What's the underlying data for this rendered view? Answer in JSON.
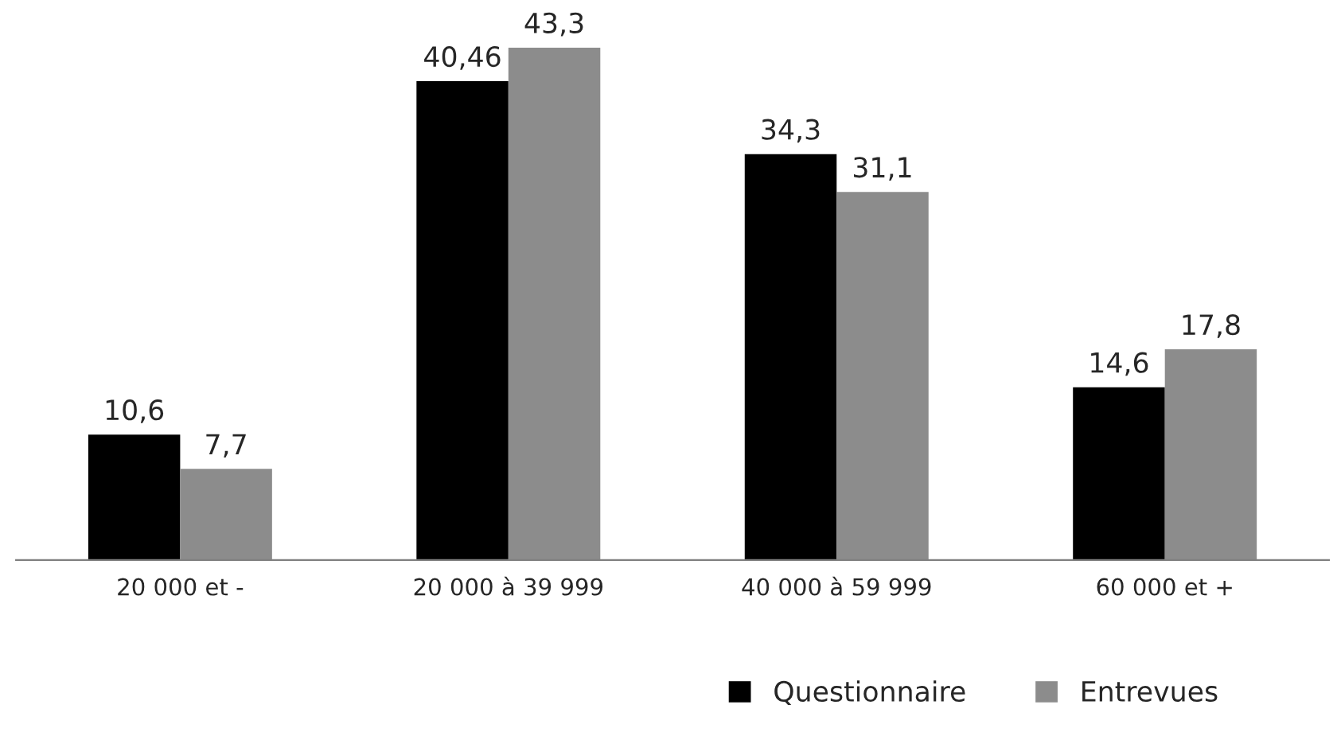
{
  "chart_data": {
    "type": "bar",
    "categories": [
      "20 000 et -",
      "20 000 à 39 999",
      "40 000 à 59 999",
      "60 000 et +"
    ],
    "series": [
      {
        "name": "Questionnaire",
        "color": "#000000",
        "values": [
          10.6,
          40.46,
          34.3,
          14.6
        ],
        "value_labels": [
          "10,6",
          "40,46",
          "34,3",
          "14,6"
        ]
      },
      {
        "name": "Entrevues",
        "color": "#8c8c8c",
        "values": [
          7.7,
          43.3,
          31.1,
          17.8
        ],
        "value_labels": [
          "7,7",
          "43,3",
          "31,1",
          "17,8"
        ]
      }
    ],
    "grid": false,
    "legend": "bottom"
  }
}
